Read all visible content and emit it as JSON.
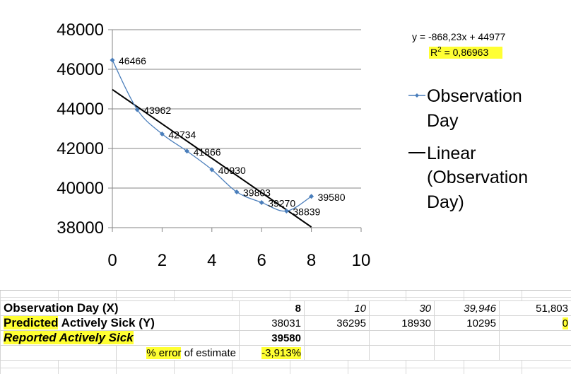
{
  "chart_data": {
    "type": "line",
    "title": "",
    "xlabel": "",
    "ylabel": "",
    "xlim": [
      0,
      10
    ],
    "ylim": [
      38000,
      48000
    ],
    "x_ticks": [
      "0",
      "2",
      "4",
      "6",
      "8",
      "10"
    ],
    "y_ticks": [
      "48000",
      "46000",
      "44000",
      "42000",
      "40000",
      "38000"
    ],
    "grid": "horizontal",
    "legend_position": "right",
    "series": [
      {
        "name": "Observation Day",
        "x": [
          0,
          1,
          2,
          3,
          4,
          5,
          6,
          7,
          8
        ],
        "y": [
          46466,
          43962,
          42734,
          41866,
          40930,
          39803,
          39270,
          38839,
          39580
        ],
        "labels": [
          "46466",
          "43962",
          "42734",
          "41866",
          "40930",
          "39803",
          "39270",
          "38839",
          "39580"
        ],
        "color": "#4a7ebb"
      },
      {
        "name": "Linear (Observation Day)",
        "type": "trendline",
        "slope": -868.23,
        "intercept": 44977,
        "x_range": [
          0,
          8
        ],
        "color": "#000000"
      }
    ],
    "equation": "y = -868,23x + 44977",
    "r_squared_prefix": "R",
    "r_squared_sup": "2",
    "r_squared_value": " = 0,86963"
  },
  "legend": {
    "series1": [
      "Observation",
      "Day"
    ],
    "series2": [
      "Linear",
      "(Observation",
      "Day)"
    ]
  },
  "table": {
    "rows": [
      [
        "Observation Day (X)",
        "",
        "",
        "",
        "8",
        "10",
        "30",
        "39,946",
        "51,803"
      ],
      [
        "Predicted Actively Sick (Y)",
        "",
        "",
        "",
        "38031",
        "36295",
        "18930",
        "10295",
        "0"
      ],
      [
        "Reported Actively Sick",
        "",
        "",
        "",
        "39580",
        "",
        "",
        "",
        ""
      ],
      [
        "",
        "",
        "% error of estimate",
        "",
        "-3,913%",
        "",
        "",
        "",
        ""
      ]
    ],
    "row0_label_a": "Observation Day (X)",
    "row1_label_hl": "Predicted",
    "row1_label_rest": " Actively Sick (Y)",
    "row2_label": "Reported Actively Sick",
    "row3_label_hl": "% error",
    "row3_label_rest": " of estimate",
    "highlight_color": "#ffff33"
  }
}
